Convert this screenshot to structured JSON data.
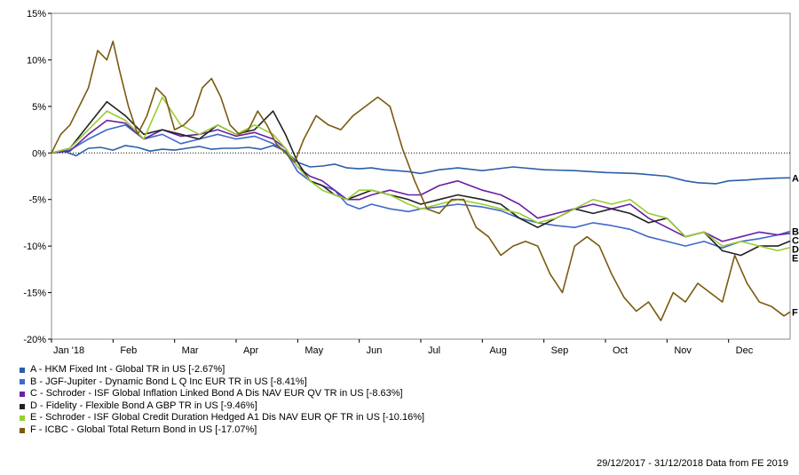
{
  "chart_data": {
    "type": "line",
    "title": "",
    "xlabel": "",
    "ylabel": "",
    "ylim": [
      -20,
      15
    ],
    "yticks": [
      -20,
      -15,
      -10,
      -5,
      0,
      5,
      10,
      15
    ],
    "ytick_labels": [
      "-20%",
      "-15%",
      "-10%",
      "-5%",
      "0%",
      "5%",
      "10%",
      "15%"
    ],
    "xlim": [
      0,
      12
    ],
    "xtick_labels": [
      "Jan '18",
      "Feb",
      "Mar",
      "Apr",
      "May",
      "Jun",
      "Jul",
      "Aug",
      "Sep",
      "Oct",
      "Nov",
      "Dec"
    ],
    "x_unit": "months since 29/12/2017",
    "zero_line": "dotted",
    "series": [
      {
        "id": "A",
        "name": "A - HKM Fixed Int - Global TR in US [-2.67%]",
        "color": "#2a5fa8",
        "x": [
          0,
          0.2,
          0.4,
          0.6,
          0.8,
          1,
          1.2,
          1.4,
          1.6,
          1.8,
          2,
          2.2,
          2.4,
          2.6,
          2.8,
          3,
          3.2,
          3.4,
          3.6,
          3.8,
          4,
          4.2,
          4.4,
          4.6,
          4.8,
          5,
          5.2,
          5.4,
          5.6,
          5.8,
          6,
          6.3,
          6.6,
          7,
          7.5,
          8,
          8.5,
          9,
          9.5,
          10,
          10.3,
          10.5,
          10.8,
          11,
          11.3,
          11.5,
          11.8,
          12
        ],
        "values": [
          0,
          0.2,
          -0.3,
          0.5,
          0.6,
          0.3,
          0.8,
          0.6,
          0.2,
          0.4,
          0.3,
          0.5,
          0.7,
          0.4,
          0.5,
          0.5,
          0.6,
          0.4,
          0.8,
          0.2,
          -1.0,
          -1.5,
          -1.4,
          -1.2,
          -1.6,
          -1.7,
          -1.6,
          -1.8,
          -1.9,
          -2.0,
          -2.2,
          -1.8,
          -1.6,
          -1.9,
          -1.5,
          -1.8,
          -1.9,
          -2.1,
          -2.2,
          -2.5,
          -3.0,
          -3.2,
          -3.3,
          -3.0,
          -2.9,
          -2.8,
          -2.7,
          -2.67
        ]
      },
      {
        "id": "B",
        "name": "B - JGF-Jupiter - Dynamic Bond L Q Inc EUR TR in US [-8.41%]",
        "color": "#4169c9",
        "x": [
          0,
          0.3,
          0.6,
          0.9,
          1.2,
          1.5,
          1.8,
          2.1,
          2.4,
          2.7,
          3,
          3.3,
          3.6,
          3.8,
          4,
          4.2,
          4.4,
          4.6,
          4.8,
          5,
          5.2,
          5.5,
          5.8,
          6,
          6.3,
          6.6,
          7,
          7.3,
          7.6,
          7.9,
          8.2,
          8.5,
          8.8,
          9.1,
          9.4,
          9.7,
          10,
          10.3,
          10.6,
          10.9,
          11.2,
          11.5,
          11.8,
          12
        ],
        "values": [
          0,
          0.3,
          1.5,
          2.5,
          3.0,
          1.5,
          2.0,
          1.0,
          1.5,
          2.0,
          1.5,
          1.8,
          1.0,
          0.2,
          -2.0,
          -3.0,
          -3.5,
          -4.0,
          -5.5,
          -6.0,
          -5.5,
          -6.0,
          -6.3,
          -6.0,
          -5.8,
          -5.5,
          -5.8,
          -6.2,
          -7.0,
          -7.5,
          -7.8,
          -8.0,
          -7.5,
          -7.8,
          -8.2,
          -9.0,
          -9.5,
          -10.0,
          -9.5,
          -10.2,
          -9.5,
          -9.2,
          -8.8,
          -8.41
        ]
      },
      {
        "id": "C",
        "name": "C - Schroder - ISF Global Inflation Linked Bond A Dis NAV EUR QV TR in US [-8.63%]",
        "color": "#6a1fa8",
        "x": [
          0,
          0.3,
          0.6,
          0.9,
          1.2,
          1.5,
          1.8,
          2.1,
          2.4,
          2.7,
          3,
          3.3,
          3.6,
          3.8,
          4,
          4.2,
          4.4,
          4.6,
          4.8,
          5,
          5.2,
          5.5,
          5.8,
          6,
          6.3,
          6.6,
          7,
          7.3,
          7.6,
          7.9,
          8.2,
          8.5,
          8.8,
          9.1,
          9.4,
          9.7,
          10,
          10.3,
          10.6,
          10.9,
          11.2,
          11.5,
          11.8,
          12
        ],
        "values": [
          0,
          0.2,
          2.0,
          3.5,
          3.2,
          1.5,
          2.5,
          1.8,
          2.0,
          2.5,
          1.8,
          2.2,
          1.5,
          0.5,
          -1.5,
          -2.5,
          -3.0,
          -4.0,
          -5.0,
          -5.0,
          -4.5,
          -4.0,
          -4.5,
          -4.5,
          -3.5,
          -3.0,
          -4.0,
          -4.5,
          -5.5,
          -7.0,
          -6.5,
          -6.0,
          -5.5,
          -6.0,
          -5.5,
          -7.0,
          -8.0,
          -9.0,
          -8.5,
          -9.5,
          -9.0,
          -8.5,
          -8.8,
          -8.63
        ]
      },
      {
        "id": "D",
        "name": "D - Fidelity - Flexible Bond A GBP TR in US [-9.46%]",
        "color": "#222222",
        "x": [
          0,
          0.3,
          0.6,
          0.9,
          1.2,
          1.5,
          1.8,
          2.1,
          2.4,
          2.7,
          3,
          3.3,
          3.6,
          3.8,
          4,
          4.2,
          4.4,
          4.6,
          4.8,
          5,
          5.2,
          5.5,
          5.8,
          6,
          6.3,
          6.6,
          7,
          7.3,
          7.6,
          7.9,
          8.2,
          8.5,
          8.8,
          9.1,
          9.4,
          9.7,
          10,
          10.3,
          10.6,
          10.9,
          11.2,
          11.5,
          11.8,
          12
        ],
        "values": [
          0,
          0.5,
          3.0,
          5.5,
          4.0,
          2.0,
          2.5,
          2.0,
          1.5,
          3.0,
          2.0,
          2.5,
          4.5,
          2.0,
          -1.0,
          -3.0,
          -3.5,
          -4.5,
          -5.0,
          -4.5,
          -4.0,
          -4.5,
          -5.0,
          -5.5,
          -5.0,
          -4.5,
          -5.0,
          -5.5,
          -7.0,
          -8.0,
          -7.0,
          -6.0,
          -6.5,
          -6.0,
          -6.5,
          -7.5,
          -7.0,
          -9.0,
          -8.5,
          -10.5,
          -11.0,
          -10.0,
          -10.0,
          -9.46
        ]
      },
      {
        "id": "E",
        "name": "E - Schroder - ISF Global Credit Duration Hedged A1 Dis NAV EUR QF TR in US [-10.16%]",
        "color": "#9acd32",
        "x": [
          0,
          0.3,
          0.6,
          0.9,
          1.2,
          1.5,
          1.8,
          2.1,
          2.4,
          2.7,
          3,
          3.3,
          3.6,
          3.8,
          4,
          4.2,
          4.4,
          4.6,
          4.8,
          5,
          5.2,
          5.5,
          5.8,
          6,
          6.3,
          6.6,
          7,
          7.3,
          7.6,
          7.9,
          8.2,
          8.5,
          8.8,
          9.1,
          9.4,
          9.7,
          10,
          10.3,
          10.6,
          10.9,
          11.2,
          11.5,
          11.8,
          12
        ],
        "values": [
          0,
          0.5,
          2.5,
          4.5,
          3.5,
          1.5,
          6.0,
          3.0,
          2.0,
          3.0,
          2.0,
          3.0,
          2.0,
          0.5,
          -1.5,
          -3.0,
          -4.0,
          -4.5,
          -5.0,
          -4.0,
          -4.0,
          -4.5,
          -5.5,
          -6.0,
          -5.5,
          -5.0,
          -5.5,
          -6.0,
          -6.5,
          -7.5,
          -7.0,
          -6.0,
          -5.0,
          -5.5,
          -5.0,
          -6.5,
          -7.0,
          -9.0,
          -8.5,
          -10.0,
          -9.5,
          -10.0,
          -10.5,
          -10.16
        ]
      },
      {
        "id": "F",
        "name": "F - ICBC - Global Total Return Bond in US [-17.07%]",
        "color": "#7a5a10",
        "x": [
          0,
          0.15,
          0.3,
          0.45,
          0.6,
          0.75,
          0.9,
          1.0,
          1.1,
          1.25,
          1.4,
          1.55,
          1.7,
          1.85,
          2.0,
          2.15,
          2.3,
          2.45,
          2.6,
          2.75,
          2.9,
          3.05,
          3.2,
          3.35,
          3.5,
          3.65,
          3.8,
          3.95,
          4.1,
          4.3,
          4.5,
          4.7,
          4.9,
          5.1,
          5.3,
          5.5,
          5.7,
          5.9,
          6.1,
          6.3,
          6.5,
          6.7,
          6.9,
          7.1,
          7.3,
          7.5,
          7.7,
          7.9,
          8.1,
          8.3,
          8.5,
          8.7,
          8.9,
          9.1,
          9.3,
          9.5,
          9.7,
          9.9,
          10.1,
          10.3,
          10.5,
          10.7,
          10.9,
          11.1,
          11.3,
          11.5,
          11.7,
          11.9,
          12
        ],
        "values": [
          0,
          2.0,
          3.0,
          5.0,
          7.0,
          11.0,
          10.0,
          12.0,
          9.0,
          5.0,
          2.0,
          4.0,
          7.0,
          6.0,
          2.5,
          3.0,
          4.0,
          7.0,
          8.0,
          6.0,
          3.0,
          2.0,
          2.5,
          4.5,
          3.0,
          1.0,
          0.0,
          -1.0,
          1.5,
          4.0,
          3.0,
          2.5,
          4.0,
          5.0,
          6.0,
          5.0,
          0.5,
          -3.0,
          -6.0,
          -6.5,
          -5.0,
          -5.0,
          -8.0,
          -9.0,
          -11.0,
          -10.0,
          -9.5,
          -10.0,
          -13.0,
          -15.0,
          -10.0,
          -9.0,
          -10.0,
          -13.0,
          -15.5,
          -17.0,
          -16.0,
          -18.0,
          -15.0,
          -16.0,
          -14.0,
          -15.0,
          -16.0,
          -11.0,
          -14.0,
          -16.0,
          -16.5,
          -17.5,
          -17.07
        ]
      }
    ]
  },
  "legend": [
    "A - HKM Fixed Int - Global TR in US [-2.67%]",
    "B - JGF-Jupiter - Dynamic Bond L Q Inc EUR TR in US [-8.41%]",
    "C - Schroder - ISF Global Inflation Linked Bond A Dis NAV EUR QV TR in US [-8.63%]",
    "D - Fidelity - Flexible Bond A GBP TR in US [-9.46%]",
    "E - Schroder - ISF Global Credit Duration Hedged A1 Dis NAV EUR QF TR in US [-10.16%]",
    "F - ICBC - Global Total Return Bond in US [-17.07%]"
  ],
  "footer": "29/12/2017 - 31/12/2018 Data from FE 2019"
}
